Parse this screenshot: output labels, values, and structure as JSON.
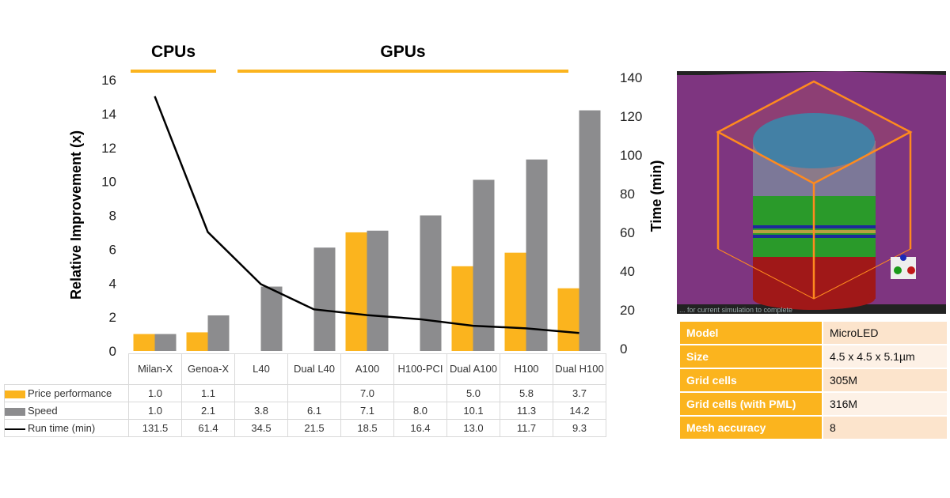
{
  "chart_data": {
    "type": "bar+line",
    "groups": [
      {
        "label": "CPUs"
      },
      {
        "label": "GPUs"
      }
    ],
    "categories": [
      "Milan-X",
      "Genoa-X",
      "L40",
      "Dual L40",
      "A100",
      "H100-PCI",
      "Dual A100",
      "H100",
      "Dual H100"
    ],
    "series": [
      {
        "name": "Price performance",
        "type": "bar",
        "axis": "left",
        "color": "#fbb41e",
        "values": [
          1.0,
          1.1,
          null,
          null,
          7.0,
          null,
          5.0,
          5.8,
          3.7
        ]
      },
      {
        "name": "Speed",
        "type": "bar",
        "axis": "left",
        "color": "#8c8c8e",
        "values": [
          1.0,
          2.1,
          3.8,
          6.1,
          7.1,
          8.0,
          10.1,
          11.3,
          14.2
        ]
      },
      {
        "name": "Run time (min)",
        "type": "line",
        "axis": "right",
        "color": "#000000",
        "values": [
          131.5,
          61.4,
          34.5,
          21.5,
          18.5,
          16.4,
          13.0,
          11.7,
          9.3
        ]
      }
    ],
    "ylabel": "Relative Improvement (x)",
    "ylim": [
      0,
      16
    ],
    "yticks": [
      "0",
      "2",
      "4",
      "6",
      "8",
      "10",
      "12",
      "14",
      "16"
    ],
    "y2label": "Time (min)",
    "y2lim": [
      0,
      140
    ],
    "y2ticks": [
      "0",
      "20",
      "40",
      "60",
      "80",
      "100",
      "120",
      "140"
    ],
    "grid": false,
    "legend": "data-table"
  },
  "info_table": [
    {
      "key": "Model",
      "value": "MicroLED"
    },
    {
      "key": "Size",
      "value": "4.5 x 4.5 x 5.1µm"
    },
    {
      "key": "Grid cells",
      "value": "305M"
    },
    {
      "key": "Grid cells (with PML)",
      "value": "316M"
    },
    {
      "key": "Mesh accuracy",
      "value": "8"
    }
  ],
  "image": {
    "caption": "... for current simulation to complete"
  }
}
